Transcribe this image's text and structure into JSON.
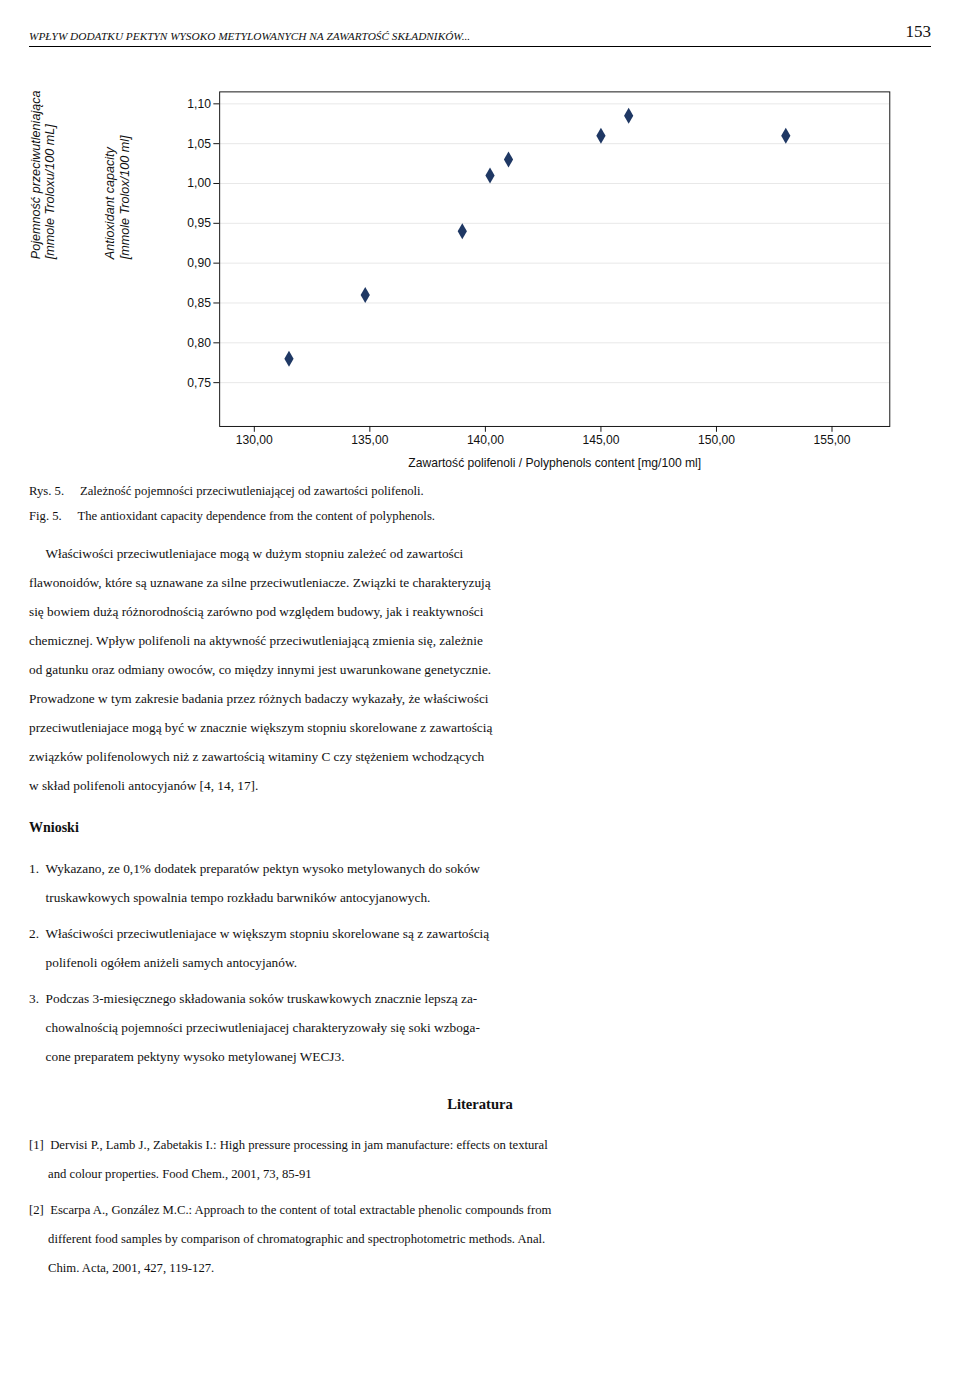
{
  "chart_data": {
    "type": "scatter",
    "x": [
      131.5,
      134.8,
      139.0,
      140.2,
      141.0,
      145.0,
      146.2,
      153.0
    ],
    "values": [
      0.78,
      0.86,
      0.94,
      1.01,
      1.03,
      1.06,
      1.085,
      1.06
    ],
    "color": "#1F3864",
    "marker": "diamond",
    "xlim": [
      128.5,
      157.5
    ],
    "ylim": [
      0.695,
      1.115
    ],
    "xticks": [
      {
        "value": 130.0,
        "label": "130,00"
      },
      {
        "value": 135.0,
        "label": "135,00"
      },
      {
        "value": 140.0,
        "label": "140,00"
      },
      {
        "value": 145.0,
        "label": "145,00"
      },
      {
        "value": 150.0,
        "label": "150,00"
      },
      {
        "value": 155.0,
        "label": "155,00"
      }
    ],
    "yticks": [
      {
        "value": 0.75,
        "label": "0,75"
      },
      {
        "value": 0.8,
        "label": "0,80"
      },
      {
        "value": 0.85,
        "label": "0,85"
      },
      {
        "value": 0.9,
        "label": "0,90"
      },
      {
        "value": 0.95,
        "label": "0,95"
      },
      {
        "value": 1.0,
        "label": "1,00"
      },
      {
        "value": 1.05,
        "label": "1,05"
      },
      {
        "value": 1.1,
        "label": "1,10"
      }
    ],
    "xlabel": "Zawartość polifenoli / Polyphenols content [mg/100 ml]",
    "ylabel": [
      "Pojemność przeciwutleniająca\n[mmole Troloxu/100 mL]",
      "Antioxidant capacity\n[mmole Trolox/100 ml]"
    ],
    "grid": "y",
    "caption": [
      "Rys. 5.  Zależność pojemności przeciwutleniającej od zawartości polifenoli.",
      "Fig. 5.  The antioxidant capacity dependence from the content of polyphenols."
    ]
  },
  "page_text": {
    "header": "WPŁYW DODATKU PEKTYN WYSOKO METYLOWANYCH NA ZAWARTOŚĆ SKŁADNIKÓW...",
    "page_number": "153",
    "body": [
      "     Właściwości przeciwutleniajace mogą w dużym stopniu zależeć od zawartości",
      "flawonoidów, które są uznawane za silne przeciwutleniacze. Związki te charakteryzują",
      "się bowiem dużą różnorodnością zarówno pod względem budowy, jak i reaktywności",
      "chemicznej. Wpływ polifenoli na aktywność przeciwutleniającą zmienia się, zależnie",
      "od gatunku oraz odmiany owoców, co między innymi jest uwarunkowane genetycznie.",
      "Prowadzone w tym zakresie badania przez różnych badaczy wykazały, że właściwości",
      "przeciwutleniajace mogą być w znacznie większym stopniu skorelowane z zawartością",
      "związków polifenolowych niż z zawartością witaminy C czy stężeniem wchodzących",
      "w skład polifenoli antocyjanów [4, 14, 17]."
    ],
    "sections": [
      {
        "heading": "Wnioski",
        "items": [
          [
            "1.  Wykazano, ze 0,1% dodatek preparatów pektyn wysoko metylowanych do soków",
            "     truskawkowych spowalnia tempo rozkładu barwników antocyjanowych."
          ],
          [
            "2.  Właściwości przeciwutleniajace w większym stopniu skorelowane są z zawartością",
            "     polifenoli ogółem aniżeli samych antocyjanów."
          ],
          [
            "3.  Podczas 3-miesięcznego składowania soków truskawkowych znacznie lepszą za-",
            "     chowalnością pojemności przeciwutleniajacej charakteryzowały się soki wzboga-",
            "     cone preparatem pektyny wysoko metylowanej WECJ3."
          ]
        ]
      },
      {
        "heading": "Literatura",
        "items": [
          [
            "[1]  Dervisi P., Lamb J., Zabetakis I.: High pressure processing in jam manufacture: effects on textural",
            "      and colour properties. Food Chem., 2001, 73, 85-91"
          ],
          [
            "[2]  Escarpa A., González M.C.: Approach to the content of total extractable phenolic compounds from",
            "      different food samples by comparison of chromatographic and spectrophotometric methods. Anal.",
            "      Chim. Acta, 2001, 427, 119-127."
          ]
        ]
      }
    ]
  }
}
